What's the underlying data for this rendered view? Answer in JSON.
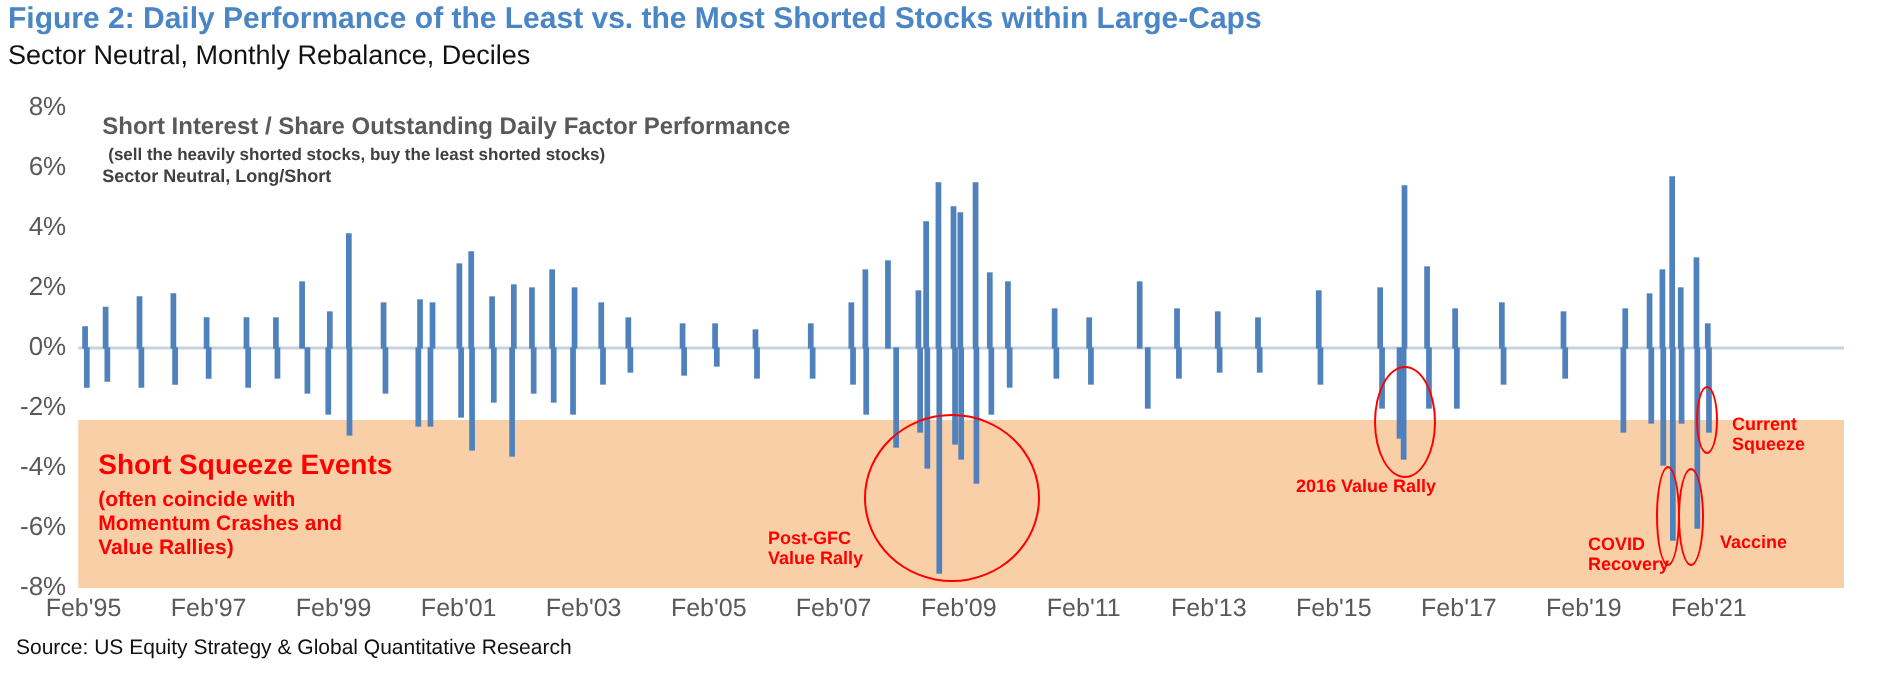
{
  "chart_data": {
    "type": "bar",
    "title": "Figure 2: Daily Performance of the Least vs. the Most Shorted Stocks within Large-Caps",
    "subtitle": "Sector Neutral, Monthly Rebalance, Deciles",
    "annotations": [
      "Short Interest / Share Outstanding Daily Factor Performance",
      "(sell the heavily shorted stocks, buy the least shorted stocks)",
      "Sector Neutral, Long/Short",
      "(often coincide with Momentum Crashes and Value Rallies)",
      "Source: US Equity Strategy & Global Quantitative Research",
      "Post-GFC Value Rally",
      "2016 Value Rally",
      "COVID Recovery",
      "Vaccine",
      "Current Squeeze"
    ],
    "x": [
      "1995-02-10",
      "1995-02-20",
      "1995-06-10",
      "1995-06-20",
      "1995-12-25",
      "1996-01-05",
      "1996-07-10",
      "1996-07-20",
      "1997-01-20",
      "1997-02-01",
      "1997-09-10",
      "1997-09-20",
      "1998-03-01",
      "1998-03-10",
      "1998-08-01",
      "1998-09-01",
      "1999-01-01",
      "1999-01-10",
      "1999-05-01",
      "1999-05-05",
      "1999-11-20",
      "1999-12-01",
      "2000-06-10",
      "2000-06-20",
      "2000-08-20",
      "2000-09-01",
      "2001-02-05",
      "2001-02-15",
      "2001-04-15",
      "2001-04-20",
      "2001-08-15",
      "2001-08-25",
      "2001-12-10",
      "2001-12-20",
      "2002-04-05",
      "2002-04-15",
      "2002-08-01",
      "2002-08-10",
      "2002-12-01",
      "2002-12-10",
      "2003-05-15",
      "2003-05-25",
      "2003-10-20",
      "2003-11-01",
      "2004-09-01",
      "2004-09-10",
      "2005-03-10",
      "2005-03-20",
      "2005-11-01",
      "2005-11-10",
      "2006-09-20",
      "2006-10-01",
      "2007-05-15",
      "2007-05-25",
      "2007-08-05",
      "2007-08-10",
      "2007-12-15",
      "2008-02-01",
      "2008-06-10",
      "2008-06-20",
      "2008-07-25",
      "2008-08-01",
      "2008-10-05",
      "2008-10-10",
      "2009-01-01",
      "2009-01-10",
      "2009-02-10",
      "2009-02-15",
      "2009-05-10",
      "2009-05-15",
      "2009-08-01",
      "2009-08-10",
      "2009-11-15",
      "2009-11-25",
      "2010-08-15",
      "2010-08-25",
      "2011-03-05",
      "2011-03-15",
      "2011-12-25",
      "2012-02-10",
      "2012-07-30",
      "2012-08-10",
      "2013-03-25",
      "2013-04-05",
      "2013-11-15",
      "2013-11-25",
      "2014-11-05",
      "2014-11-15",
      "2015-10-30",
      "2015-11-10",
      "2016-02-20",
      "2016-03-15",
      "2016-03-20",
      "2016-07-30",
      "2016-08-10",
      "2017-01-10",
      "2017-01-20",
      "2017-10-10",
      "2017-10-20",
      "2018-10-05",
      "2018-10-15",
      "2019-09-20",
      "2019-10-01",
      "2020-02-20",
      "2020-03-01",
      "2020-05-05",
      "2020-05-10",
      "2020-07-01",
      "2020-07-05",
      "2020-08-20",
      "2020-08-25",
      "2020-11-20",
      "2020-11-25",
      "2021-01-25",
      "2021-02-01"
    ],
    "values": [
      0.7,
      -1.3,
      1.35,
      -1.1,
      1.7,
      -1.3,
      1.8,
      -1.2,
      1.0,
      -1.0,
      1.0,
      -1.3,
      1.0,
      -1.0,
      2.2,
      -1.5,
      -2.2,
      1.2,
      3.8,
      -2.9,
      1.5,
      -1.5,
      -2.6,
      1.6,
      -2.6,
      1.5,
      2.8,
      -2.3,
      3.2,
      -3.4,
      1.7,
      -1.8,
      -3.6,
      2.1,
      2.0,
      -1.5,
      2.6,
      -1.8,
      -2.2,
      2.0,
      1.5,
      -1.2,
      1.0,
      -0.8,
      0.8,
      -0.9,
      0.8,
      -0.6,
      0.6,
      -1.0,
      0.8,
      -1.0,
      1.5,
      -1.2,
      2.6,
      -2.2,
      2.9,
      -3.3,
      1.9,
      -2.8,
      4.2,
      -4.0,
      5.5,
      -7.5,
      4.7,
      -3.2,
      4.5,
      -3.7,
      5.5,
      -4.5,
      2.5,
      -2.2,
      2.2,
      -1.3,
      1.3,
      -1.0,
      1.0,
      -1.2,
      2.2,
      -2.0,
      1.3,
      -1.0,
      1.2,
      -0.8,
      1.0,
      -0.8,
      1.9,
      -1.2,
      2.0,
      -2.0,
      -3.0,
      -3.7,
      5.4,
      2.7,
      -2.0,
      1.3,
      -2.0,
      1.5,
      -1.2,
      1.2,
      -1.0,
      -2.8,
      1.3,
      1.8,
      -2.5,
      2.6,
      -3.9,
      5.7,
      -6.4,
      2.0,
      -2.5,
      3.0,
      -6.0,
      0.8,
      -2.8
    ],
    "color": "#4f81bd",
    "xlim": [
      "1995-01-01",
      "2023-04-01"
    ],
    "xticks": [
      {
        "value": "1995-02-01",
        "label": "Feb'95"
      },
      {
        "value": "1997-02-01",
        "label": "Feb'97"
      },
      {
        "value": "1999-02-01",
        "label": "Feb'99"
      },
      {
        "value": "2001-02-01",
        "label": "Feb'01"
      },
      {
        "value": "2003-02-01",
        "label": "Feb'03"
      },
      {
        "value": "2005-02-01",
        "label": "Feb'05"
      },
      {
        "value": "2007-02-01",
        "label": "Feb'07"
      },
      {
        "value": "2009-02-01",
        "label": "Feb'09"
      },
      {
        "value": "2011-02-01",
        "label": "Feb'11"
      },
      {
        "value": "2013-02-01",
        "label": "Feb'13"
      },
      {
        "value": "2015-02-01",
        "label": "Feb'15"
      },
      {
        "value": "2017-02-01",
        "label": "Feb'17"
      },
      {
        "value": "2019-02-01",
        "label": "Feb'19"
      },
      {
        "value": "2021-02-01",
        "label": "Feb'21"
      }
    ],
    "ylim": [
      -8,
      8
    ],
    "yticks": [
      {
        "value": -8,
        "label": "-8%"
      },
      {
        "value": -6,
        "label": "-6%"
      },
      {
        "value": -4,
        "label": "-4%"
      },
      {
        "value": -2,
        "label": "-2%"
      },
      {
        "value": 0,
        "label": "0%"
      },
      {
        "value": 2,
        "label": "2%"
      },
      {
        "value": 4,
        "label": "4%"
      },
      {
        "value": 6,
        "label": "6%"
      },
      {
        "value": 8,
        "label": "8%"
      }
    ],
    "ref_lines": [
      {
        "axis": "y",
        "value": 0,
        "color": "#c9d3e0"
      }
    ],
    "bands": [
      {
        "axis": "y",
        "from": -8,
        "to": -2.4,
        "label": "Short Squeeze Events",
        "color": "#f9cfa8"
      }
    ],
    "grid": false,
    "legend": false
  }
}
